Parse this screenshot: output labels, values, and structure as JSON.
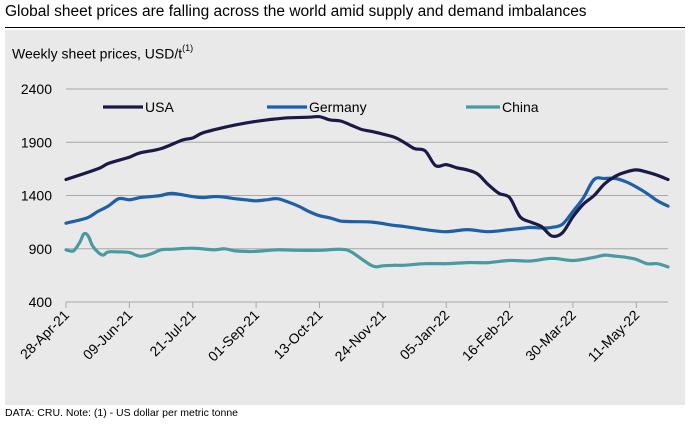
{
  "title": "Global sheet prices are falling across the world amid supply and demand imbalances",
  "subtitle": "Weekly sheet prices, USD/t",
  "subtitle_note": "(1)",
  "footer": "DATA: CRU.  Note: (1) - US dollar per metric tonne",
  "chart_data": {
    "type": "line",
    "title": "Weekly sheet prices, USD/t(1)",
    "xlabel": "",
    "ylabel": "USD/t",
    "ylim": [
      400,
      2400
    ],
    "yticks": [
      400,
      900,
      1400,
      1900,
      2400
    ],
    "grid": true,
    "legend_position": "top",
    "x_tick_labels": [
      "28-Apr-21",
      "09-Jun-21",
      "21-Jul-21",
      "01-Sep-21",
      "13-Oct-21",
      "24-Nov-21",
      "05-Jan-22",
      "16-Feb-22",
      "30-Mar-22",
      "11-May-22"
    ],
    "x_weeks": [
      0,
      6,
      12,
      18,
      24,
      30,
      36,
      42,
      48,
      54
    ],
    "x_range": [
      0,
      57
    ],
    "series": [
      {
        "name": "USA",
        "color": "#1b1a47",
        "x": [
          0,
          3,
          4,
          6,
          7,
          9,
          11,
          12,
          13,
          15,
          17,
          19,
          20,
          21,
          23,
          24,
          25,
          26,
          27,
          28,
          29,
          31,
          32,
          33,
          34,
          35,
          36,
          37,
          38,
          39,
          40,
          41,
          42,
          43,
          44,
          45,
          46,
          47,
          48,
          49,
          50,
          51,
          52,
          53,
          54,
          55,
          56,
          57
        ],
        "values": [
          1550,
          1650,
          1700,
          1760,
          1800,
          1840,
          1920,
          1940,
          1990,
          2040,
          2080,
          2110,
          2120,
          2130,
          2135,
          2140,
          2110,
          2100,
          2060,
          2020,
          2000,
          1950,
          1900,
          1840,
          1820,
          1680,
          1690,
          1660,
          1640,
          1600,
          1500,
          1420,
          1380,
          1200,
          1150,
          1110,
          1020,
          1050,
          1200,
          1320,
          1400,
          1510,
          1580,
          1620,
          1640,
          1620,
          1590,
          1550
        ]
      },
      {
        "name": "Germany",
        "color": "#1f5fa8",
        "x": [
          0,
          2,
          3,
          4,
          5,
          6,
          7,
          8,
          9,
          10,
          12,
          13,
          14,
          15,
          16,
          17,
          18,
          19,
          20,
          21,
          22,
          23,
          24,
          25,
          26,
          27,
          29,
          31,
          32,
          34,
          36,
          38,
          40,
          42,
          43,
          44,
          45,
          46,
          47,
          48,
          49,
          50,
          51,
          52,
          53,
          54,
          55,
          56,
          57
        ],
        "values": [
          1140,
          1190,
          1250,
          1300,
          1370,
          1360,
          1380,
          1390,
          1400,
          1420,
          1390,
          1380,
          1390,
          1385,
          1370,
          1360,
          1350,
          1360,
          1370,
          1340,
          1300,
          1250,
          1210,
          1190,
          1160,
          1155,
          1150,
          1120,
          1110,
          1080,
          1060,
          1080,
          1060,
          1080,
          1090,
          1100,
          1095,
          1100,
          1130,
          1250,
          1380,
          1550,
          1560,
          1560,
          1530,
          1480,
          1420,
          1350,
          1300
        ]
      },
      {
        "name": "China",
        "color": "#4a9aa1",
        "x": [
          0,
          0.7,
          1.3,
          1.7,
          2.1,
          2.5,
          3,
          3.5,
          4,
          5,
          6,
          7,
          8,
          9,
          10,
          12,
          14,
          15,
          16,
          17,
          18,
          20,
          22,
          24,
          26,
          27,
          29,
          30,
          31,
          32,
          34,
          36,
          38,
          40,
          42,
          44,
          46,
          48,
          50,
          51,
          52,
          53,
          54,
          55,
          56,
          57
        ],
        "values": [
          890,
          880,
          960,
          1040,
          1020,
          930,
          870,
          840,
          870,
          870,
          865,
          830,
          850,
          890,
          895,
          905,
          890,
          900,
          880,
          875,
          875,
          890,
          885,
          885,
          895,
          870,
          740,
          740,
          745,
          745,
          760,
          760,
          770,
          770,
          790,
          785,
          810,
          790,
          820,
          840,
          830,
          820,
          800,
          760,
          760,
          730
        ]
      }
    ]
  }
}
